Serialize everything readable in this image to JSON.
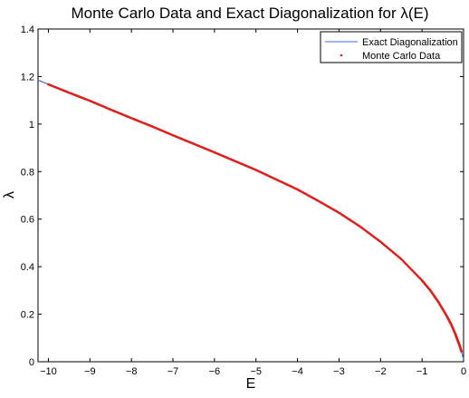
{
  "chart_data": {
    "type": "line",
    "title": "Monte Carlo Data and Exact Diagonalization for λ(E)",
    "xlabel": "E",
    "ylabel": "λ",
    "xlim": [
      -10.25,
      0
    ],
    "ylim": [
      0,
      1.4
    ],
    "x_ticks": [
      -10,
      -9,
      -8,
      -7,
      -6,
      -5,
      -4,
      -3,
      -2,
      -1,
      0
    ],
    "x_tick_labels": [
      "−10",
      "−9",
      "−8",
      "−7",
      "−6",
      "−5",
      "−4",
      "−3",
      "−2",
      "−1",
      "0"
    ],
    "y_ticks": [
      0,
      0.2,
      0.4,
      0.6,
      0.8,
      1,
      1.2,
      1.4
    ],
    "y_tick_labels": [
      "0",
      "0.2",
      "0.4",
      "0.6",
      "0.8",
      "1",
      "1.2",
      "1.4"
    ],
    "grid": false,
    "legend_position": "top-right",
    "series": [
      {
        "name": "Exact Diagonalization",
        "style": "line",
        "color": "#4169e1",
        "x": [
          -10.25,
          -10,
          -9.5,
          -9,
          -8.5,
          -8,
          -7.5,
          -7,
          -6.5,
          -6,
          -5.5,
          -5,
          -4.5,
          -4,
          -3.5,
          -3,
          -2.5,
          -2,
          -1.5,
          -1,
          -0.8,
          -0.6,
          -0.4,
          -0.3,
          -0.2,
          -0.15,
          -0.1,
          -0.05,
          0
        ],
        "y": [
          1.185,
          1.167,
          1.132,
          1.098,
          1.061,
          1.025,
          0.99,
          0.953,
          0.917,
          0.881,
          0.844,
          0.807,
          0.766,
          0.725,
          0.677,
          0.627,
          0.57,
          0.505,
          0.432,
          0.342,
          0.3,
          0.25,
          0.191,
          0.158,
          0.118,
          0.094,
          0.071,
          0.043,
          0.01
        ]
      },
      {
        "name": "Monte Carlo Data",
        "style": "dots",
        "color": "#e0201b",
        "x": [
          -10,
          -9.5,
          -9,
          -8.5,
          -8,
          -7.5,
          -7,
          -6.5,
          -6,
          -5.5,
          -5,
          -4.5,
          -4,
          -3.5,
          -3,
          -2.5,
          -2,
          -1.5,
          -1,
          -0.8,
          -0.6,
          -0.4,
          -0.3,
          -0.2,
          -0.15,
          -0.1,
          -0.05
        ],
        "y": [
          1.167,
          1.132,
          1.098,
          1.061,
          1.025,
          0.99,
          0.953,
          0.917,
          0.881,
          0.844,
          0.807,
          0.766,
          0.725,
          0.677,
          0.627,
          0.57,
          0.505,
          0.432,
          0.342,
          0.3,
          0.25,
          0.191,
          0.158,
          0.118,
          0.094,
          0.071,
          0.043
        ]
      }
    ]
  }
}
